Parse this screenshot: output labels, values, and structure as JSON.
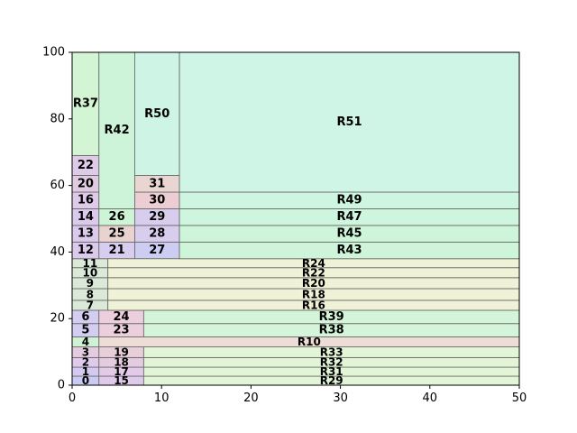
{
  "chart_data": {
    "type": "treemap",
    "xlim": [
      0,
      50
    ],
    "ylim": [
      0,
      100
    ],
    "x_ticks": [
      "0",
      "10",
      "20",
      "30",
      "40",
      "50"
    ],
    "y_ticks": [
      "0",
      "20",
      "40",
      "60",
      "80",
      "100"
    ],
    "grid": false,
    "cells": [
      {
        "label": "0",
        "x0": 0,
        "x1": 3,
        "y0": 0,
        "y1": 2.7,
        "color": "#b8b8ee"
      },
      {
        "label": "1",
        "x0": 0,
        "x1": 3,
        "y0": 2.7,
        "y1": 5.4,
        "color": "#c6b8ea"
      },
      {
        "label": "2",
        "x0": 0,
        "x1": 3,
        "y0": 5.4,
        "y1": 8.3,
        "color": "#d4b8e4"
      },
      {
        "label": "3",
        "x0": 0,
        "x1": 3,
        "y0": 8.3,
        "y1": 11.5,
        "color": "#dcbad6"
      },
      {
        "label": "4",
        "x0": 0,
        "x1": 3,
        "y0": 11.5,
        "y1": 14.5,
        "color": "#bdeec4"
      },
      {
        "label": "5",
        "x0": 0,
        "x1": 3,
        "y0": 14.5,
        "y1": 18.5,
        "color": "#c4bcee"
      },
      {
        "label": "6",
        "x0": 0,
        "x1": 3,
        "y0": 18.5,
        "y1": 22.5,
        "color": "#c6bcea"
      },
      {
        "label": "7",
        "x0": 0,
        "x1": 4,
        "y0": 22.5,
        "y1": 25.5,
        "color": "#cfe2cc"
      },
      {
        "label": "8",
        "x0": 0,
        "x1": 4,
        "y0": 25.5,
        "y1": 29.0,
        "color": "#cfe2cc"
      },
      {
        "label": "9",
        "x0": 0,
        "x1": 4,
        "y0": 29.0,
        "y1": 32.3,
        "color": "#cfe2cc"
      },
      {
        "label": "10",
        "x0": 0,
        "x1": 4,
        "y0": 32.3,
        "y1": 35.3,
        "color": "#cfe2cc"
      },
      {
        "label": "11",
        "x0": 0,
        "x1": 4,
        "y0": 35.3,
        "y1": 38.0,
        "color": "#cfe2cc"
      },
      {
        "label": "12",
        "x0": 0,
        "x1": 3,
        "y0": 38.0,
        "y1": 43.0,
        "color": "#d0b8e6"
      },
      {
        "label": "13",
        "x0": 0,
        "x1": 3,
        "y0": 43.0,
        "y1": 48.0,
        "color": "#d0b8e6"
      },
      {
        "label": "14",
        "x0": 0,
        "x1": 3,
        "y0": 48.0,
        "y1": 53.0,
        "color": "#d0b8e6"
      },
      {
        "label": "16",
        "x0": 0,
        "x1": 3,
        "y0": 53.0,
        "y1": 58.0,
        "color": "#d6b8e2"
      },
      {
        "label": "20",
        "x0": 0,
        "x1": 3,
        "y0": 58.0,
        "y1": 63.0,
        "color": "#d6bada"
      },
      {
        "label": "22",
        "x0": 0,
        "x1": 3,
        "y0": 63.0,
        "y1": 69.0,
        "color": "#d4b8e0"
      },
      {
        "label": "R37",
        "x0": 0,
        "x1": 3,
        "y0": 69.0,
        "y1": 100,
        "color": "#c6f2c6"
      },
      {
        "label": "15",
        "x0": 3,
        "x1": 8,
        "y0": 0,
        "y1": 2.7,
        "color": "#d6b8e4"
      },
      {
        "label": "17",
        "x0": 3,
        "x1": 8,
        "y0": 2.7,
        "y1": 5.4,
        "color": "#d8b8e0"
      },
      {
        "label": "18",
        "x0": 3,
        "x1": 8,
        "y0": 5.4,
        "y1": 8.3,
        "color": "#dcbad4"
      },
      {
        "label": "19",
        "x0": 3,
        "x1": 8,
        "y0": 8.3,
        "y1": 11.5,
        "color": "#dfbecc"
      },
      {
        "label": "23",
        "x0": 3,
        "x1": 8,
        "y0": 14.5,
        "y1": 18.5,
        "color": "#e6bfd2"
      },
      {
        "label": "24",
        "x0": 3,
        "x1": 8,
        "y0": 18.5,
        "y1": 22.5,
        "color": "#e6bfd2"
      },
      {
        "label": "21",
        "x0": 3,
        "x1": 7,
        "y0": 38.0,
        "y1": 43.0,
        "color": "#c8bcea"
      },
      {
        "label": "25",
        "x0": 3,
        "x1": 7,
        "y0": 43.0,
        "y1": 48.0,
        "color": "#e2c4c0"
      },
      {
        "label": "26",
        "x0": 3,
        "x1": 7,
        "y0": 48.0,
        "y1": 53.0,
        "color": "#bcf0c6"
      },
      {
        "label": "R42",
        "x0": 3,
        "x1": 7,
        "y0": 53.0,
        "y1": 100,
        "color": "#bcf0cc"
      },
      {
        "label": "27",
        "x0": 7,
        "x1": 12,
        "y0": 38.0,
        "y1": 43.0,
        "color": "#bcbcf0"
      },
      {
        "label": "28",
        "x0": 7,
        "x1": 12,
        "y0": 43.0,
        "y1": 48.0,
        "color": "#ccbce8"
      },
      {
        "label": "29",
        "x0": 7,
        "x1": 12,
        "y0": 48.0,
        "y1": 53.0,
        "color": "#ccbce8"
      },
      {
        "label": "30",
        "x0": 7,
        "x1": 12,
        "y0": 53.0,
        "y1": 58.0,
        "color": "#e6bcc6"
      },
      {
        "label": "31",
        "x0": 7,
        "x1": 12,
        "y0": 58.0,
        "y1": 63.0,
        "color": "#e2c8c4"
      },
      {
        "label": "R50",
        "x0": 7,
        "x1": 12,
        "y0": 63.0,
        "y1": 100,
        "color": "#bef0dc"
      },
      {
        "label": "R29",
        "x0": 8,
        "x1": 50,
        "y0": 0,
        "y1": 2.7,
        "color": "#d8f2c8"
      },
      {
        "label": "R31",
        "x0": 8,
        "x1": 50,
        "y0": 2.7,
        "y1": 5.4,
        "color": "#d8f2c8"
      },
      {
        "label": "R32",
        "x0": 8,
        "x1": 50,
        "y0": 5.4,
        "y1": 8.3,
        "color": "#d8f2c8"
      },
      {
        "label": "R33",
        "x0": 8,
        "x1": 50,
        "y0": 8.3,
        "y1": 11.5,
        "color": "#d8f2c8"
      },
      {
        "label": "R10",
        "x0": 3,
        "x1": 50,
        "y0": 11.5,
        "y1": 14.5,
        "color": "#e8d2c8"
      },
      {
        "label": "R38",
        "x0": 8,
        "x1": 50,
        "y0": 14.5,
        "y1": 18.5,
        "color": "#c6f2cc"
      },
      {
        "label": "R39",
        "x0": 8,
        "x1": 50,
        "y0": 18.5,
        "y1": 22.5,
        "color": "#c6f2cc"
      },
      {
        "label": "R16",
        "x0": 4,
        "x1": 50,
        "y0": 22.5,
        "y1": 25.5,
        "color": "#eaeec8"
      },
      {
        "label": "R18",
        "x0": 4,
        "x1": 50,
        "y0": 25.5,
        "y1": 29.0,
        "color": "#eaeec8"
      },
      {
        "label": "R20",
        "x0": 4,
        "x1": 50,
        "y0": 29.0,
        "y1": 32.3,
        "color": "#eaeec8"
      },
      {
        "label": "R22",
        "x0": 4,
        "x1": 50,
        "y0": 32.3,
        "y1": 35.3,
        "color": "#eaeec8"
      },
      {
        "label": "R24",
        "x0": 4,
        "x1": 50,
        "y0": 35.3,
        "y1": 38.0,
        "color": "#eaeec8"
      },
      {
        "label": "R43",
        "x0": 12,
        "x1": 50,
        "y0": 38.0,
        "y1": 43.0,
        "color": "#bef2cc"
      },
      {
        "label": "R45",
        "x0": 12,
        "x1": 50,
        "y0": 43.0,
        "y1": 48.0,
        "color": "#bef2cc"
      },
      {
        "label": "R47",
        "x0": 12,
        "x1": 50,
        "y0": 48.0,
        "y1": 53.0,
        "color": "#bef2d2"
      },
      {
        "label": "R49",
        "x0": 12,
        "x1": 50,
        "y0": 53.0,
        "y1": 58.0,
        "color": "#bef2d6"
      },
      {
        "label": "R51",
        "x0": 12,
        "x1": 50,
        "y0": 58.0,
        "y1": 100,
        "color": "#bef2dc"
      }
    ]
  }
}
